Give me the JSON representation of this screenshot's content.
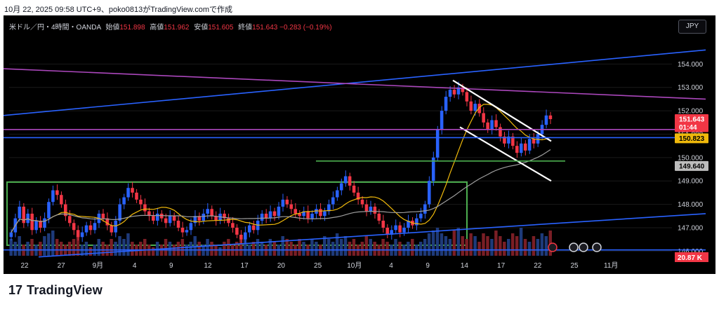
{
  "header": {
    "date_line": "10月 22, 2025 09:58 UTC+9、poko0813がTradingView.comで作成"
  },
  "legend": {
    "symbol": "米ドル／円・4時間・OANDA",
    "open_label": "始値",
    "open": "151.898",
    "high_label": "高値",
    "high": "151.962",
    "low_label": "安値",
    "low": "151.605",
    "close_label": "終値",
    "close": "151.643",
    "change": "−0.283 (−0.19%)"
  },
  "toolbar": {
    "currency": "JPY"
  },
  "brand": {
    "logo": "17",
    "name": "TradingView"
  },
  "colors": {
    "up": "#2962ff",
    "down": "#f23645",
    "ma_fast": "#f0b90b",
    "ma_slow": "#9e9e9e",
    "trend_blue": "#2962ff",
    "trend_purple": "#ab47bc",
    "zone_green": "#4caf50",
    "channel": "#ffffff"
  },
  "chart_data": {
    "type": "candlestick",
    "ylim": [
      145.8,
      155.0
    ],
    "y_ticks": [
      "154.000",
      "153.000",
      "152.000",
      "151.000",
      "150.000",
      "149.000",
      "148.000",
      "147.000",
      "146.000"
    ],
    "x_ticks": [
      "22",
      "27",
      "9月",
      "4",
      "9",
      "12",
      "17",
      "20",
      "25",
      "10月",
      "4",
      "9",
      "14",
      "17",
      "22",
      "25",
      "11月"
    ],
    "price_labels": [
      {
        "text": "151.643",
        "value": 151.643,
        "color": "#f23645"
      },
      {
        "text": "01:44",
        "value": 151.3,
        "color": "#f23645"
      },
      {
        "text": "150.823",
        "value": 150.823,
        "color": "#f0b90b"
      },
      {
        "text": "149.640",
        "value": 149.64,
        "color": "#bdbdbd"
      }
    ],
    "volume_label": "20.87 K",
    "candle_closes": [
      146.8,
      147.4,
      147.9,
      147.2,
      147.6,
      146.9,
      147.3,
      147.0,
      147.4,
      148.1,
      148.6,
      148.4,
      148.0,
      147.5,
      147.2,
      146.9,
      146.6,
      146.8,
      147.1,
      146.9,
      147.2,
      147.6,
      147.4,
      147.1,
      146.8,
      147.3,
      148.0,
      148.3,
      148.7,
      148.5,
      148.2,
      148.0,
      147.7,
      147.5,
      147.3,
      147.6,
      147.4,
      147.2,
      147.5,
      147.3,
      147.0,
      146.8,
      146.9,
      147.2,
      147.5,
      147.3,
      147.6,
      147.8,
      147.5,
      147.3,
      147.6,
      147.4,
      147.2,
      147.0,
      146.7,
      146.5,
      146.8,
      147.1,
      146.9,
      147.3,
      147.6,
      147.4,
      147.7,
      147.5,
      147.9,
      148.2,
      148.0,
      147.8,
      147.6,
      147.5,
      147.7,
      147.4,
      147.6,
      147.8,
      147.5,
      147.7,
      148.0,
      148.3,
      148.6,
      148.9,
      149.2,
      148.8,
      148.5,
      148.2,
      148.0,
      147.7,
      147.9,
      147.6,
      147.3,
      147.0,
      146.7,
      146.9,
      147.1,
      146.8,
      147.0,
      147.3,
      147.1,
      147.4,
      147.6,
      148.0,
      149.0,
      150.0,
      151.2,
      152.0,
      152.6,
      152.9,
      152.7,
      153.0,
      152.8,
      152.4,
      152.0,
      152.3,
      151.9,
      151.5,
      151.2,
      151.6,
      151.3,
      150.9,
      150.6,
      150.9,
      150.5,
      150.2,
      150.6,
      150.3,
      150.8,
      150.6,
      151.0,
      151.4,
      151.8,
      151.643
    ],
    "vol_values": [
      0.6,
      0.5,
      0.7,
      0.4,
      0.5,
      0.6,
      0.4,
      0.5,
      0.7,
      0.8,
      0.9,
      0.6,
      0.5,
      0.4,
      0.5,
      0.6,
      0.7,
      0.4,
      0.5,
      0.3,
      0.4,
      0.6,
      0.5,
      0.4,
      0.6,
      0.5,
      0.7,
      0.6,
      0.8,
      0.5,
      0.4,
      0.5,
      0.6,
      0.4,
      0.3,
      0.5,
      0.4,
      0.6,
      0.5,
      0.4,
      0.5,
      0.6,
      0.4,
      0.5,
      0.7,
      0.5,
      0.4,
      0.6,
      0.5,
      0.4,
      0.3,
      0.5,
      0.6,
      0.4,
      0.5,
      0.7,
      0.6,
      0.4,
      0.5,
      0.6,
      0.5,
      0.4,
      0.6,
      0.5,
      0.4,
      0.7,
      0.6,
      0.5,
      0.4,
      0.6,
      0.5,
      0.4,
      0.6,
      0.5,
      0.4,
      0.7,
      0.6,
      0.5,
      0.8,
      0.6,
      0.7,
      0.5,
      0.6,
      0.4,
      0.5,
      0.7,
      0.6,
      0.5,
      0.4,
      0.6,
      0.5,
      0.4,
      0.6,
      0.5,
      0.4,
      0.5,
      0.6,
      0.4,
      0.5,
      0.6,
      0.8,
      0.9,
      1.0,
      0.8,
      0.7,
      0.6,
      0.9,
      1.0,
      0.7,
      0.6,
      0.8,
      0.7,
      0.5,
      0.8,
      0.7,
      0.6,
      0.9,
      0.7,
      0.5,
      0.6,
      0.8,
      0.7,
      1.0,
      0.6,
      0.5,
      0.7,
      0.6,
      0.8,
      0.7,
      0.9
    ],
    "lines": [
      {
        "name": "blue-upper-trendline",
        "points": [
          [
            0,
            151.8
          ],
          [
            1000,
            154.6
          ]
        ],
        "color": "#2962ff"
      },
      {
        "name": "blue-lower-trendline",
        "points": [
          [
            50,
            145.75
          ],
          [
            1000,
            147.6
          ]
        ],
        "color": "#2962ff"
      },
      {
        "name": "purple-trendline",
        "points": [
          [
            0,
            153.8
          ],
          [
            1000,
            152.5
          ]
        ],
        "color": "#ab47bc"
      },
      {
        "name": "channel-top",
        "points": [
          [
            640,
            153.3
          ],
          [
            780,
            150.7
          ]
        ],
        "color": "#ffffff"
      },
      {
        "name": "channel-bottom",
        "points": [
          [
            650,
            151.3
          ],
          [
            780,
            149.0
          ]
        ],
        "color": "#ffffff"
      },
      {
        "name": "hline-blue",
        "points": [
          [
            0,
            150.85
          ],
          [
            1000,
            150.85
          ]
        ],
        "color": "#2962ff"
      },
      {
        "name": "hline-purple",
        "points": [
          [
            0,
            151.2
          ],
          [
            1000,
            151.2
          ]
        ],
        "color": "#ab47bc"
      },
      {
        "name": "hline-green",
        "points": [
          [
            445,
            149.85
          ],
          [
            800,
            149.85
          ]
        ],
        "color": "#4caf50"
      },
      {
        "name": "hline-blue-low",
        "points": [
          [
            0,
            146.05
          ],
          [
            1000,
            146.05
          ]
        ],
        "color": "#2962ff"
      }
    ],
    "zones": [
      {
        "name": "green-range-box",
        "x0": 5,
        "x1": 660,
        "y_top": 148.95,
        "y_bottom": 146.25,
        "color": "#4caf50"
      }
    ]
  }
}
